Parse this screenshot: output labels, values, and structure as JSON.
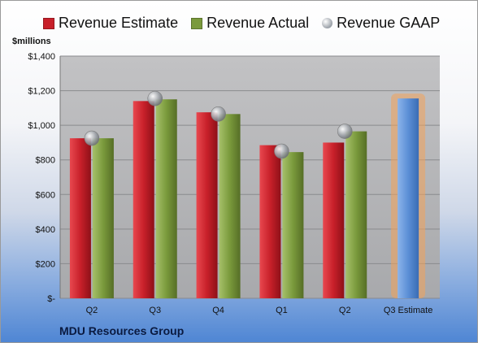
{
  "chart_data": {
    "type": "bar",
    "title": "",
    "ylabel": "$millions",
    "xlabel": "",
    "footer": "MDU Resources Group",
    "categories": [
      "Q2",
      "Q3",
      "Q4",
      "Q1",
      "Q2",
      "Q3 Estimate"
    ],
    "yticks": [
      "$-",
      "$200",
      "$400",
      "$600",
      "$800",
      "$1,000",
      "$1,200",
      "$1,400"
    ],
    "ylim": [
      0,
      1400
    ],
    "grid": true,
    "legend_position": "top",
    "series": [
      {
        "name": "Revenue Estimate",
        "type": "bar",
        "color": "#c8202a",
        "values": [
          925,
          1140,
          1075,
          885,
          900,
          null
        ]
      },
      {
        "name": "Revenue Actual",
        "type": "bar",
        "color": "#7a9a3c",
        "values": [
          925,
          1150,
          1065,
          845,
          965,
          null
        ]
      },
      {
        "name": "Revenue GAAP",
        "type": "marker",
        "color": "#a0a4aa",
        "values": [
          925,
          1155,
          1065,
          850,
          965,
          null
        ]
      },
      {
        "name": "Q3 Estimate",
        "type": "bar",
        "color": "#5b8fd6",
        "highlight": "#f3a25a",
        "values": [
          null,
          null,
          null,
          null,
          null,
          1155
        ]
      }
    ]
  }
}
